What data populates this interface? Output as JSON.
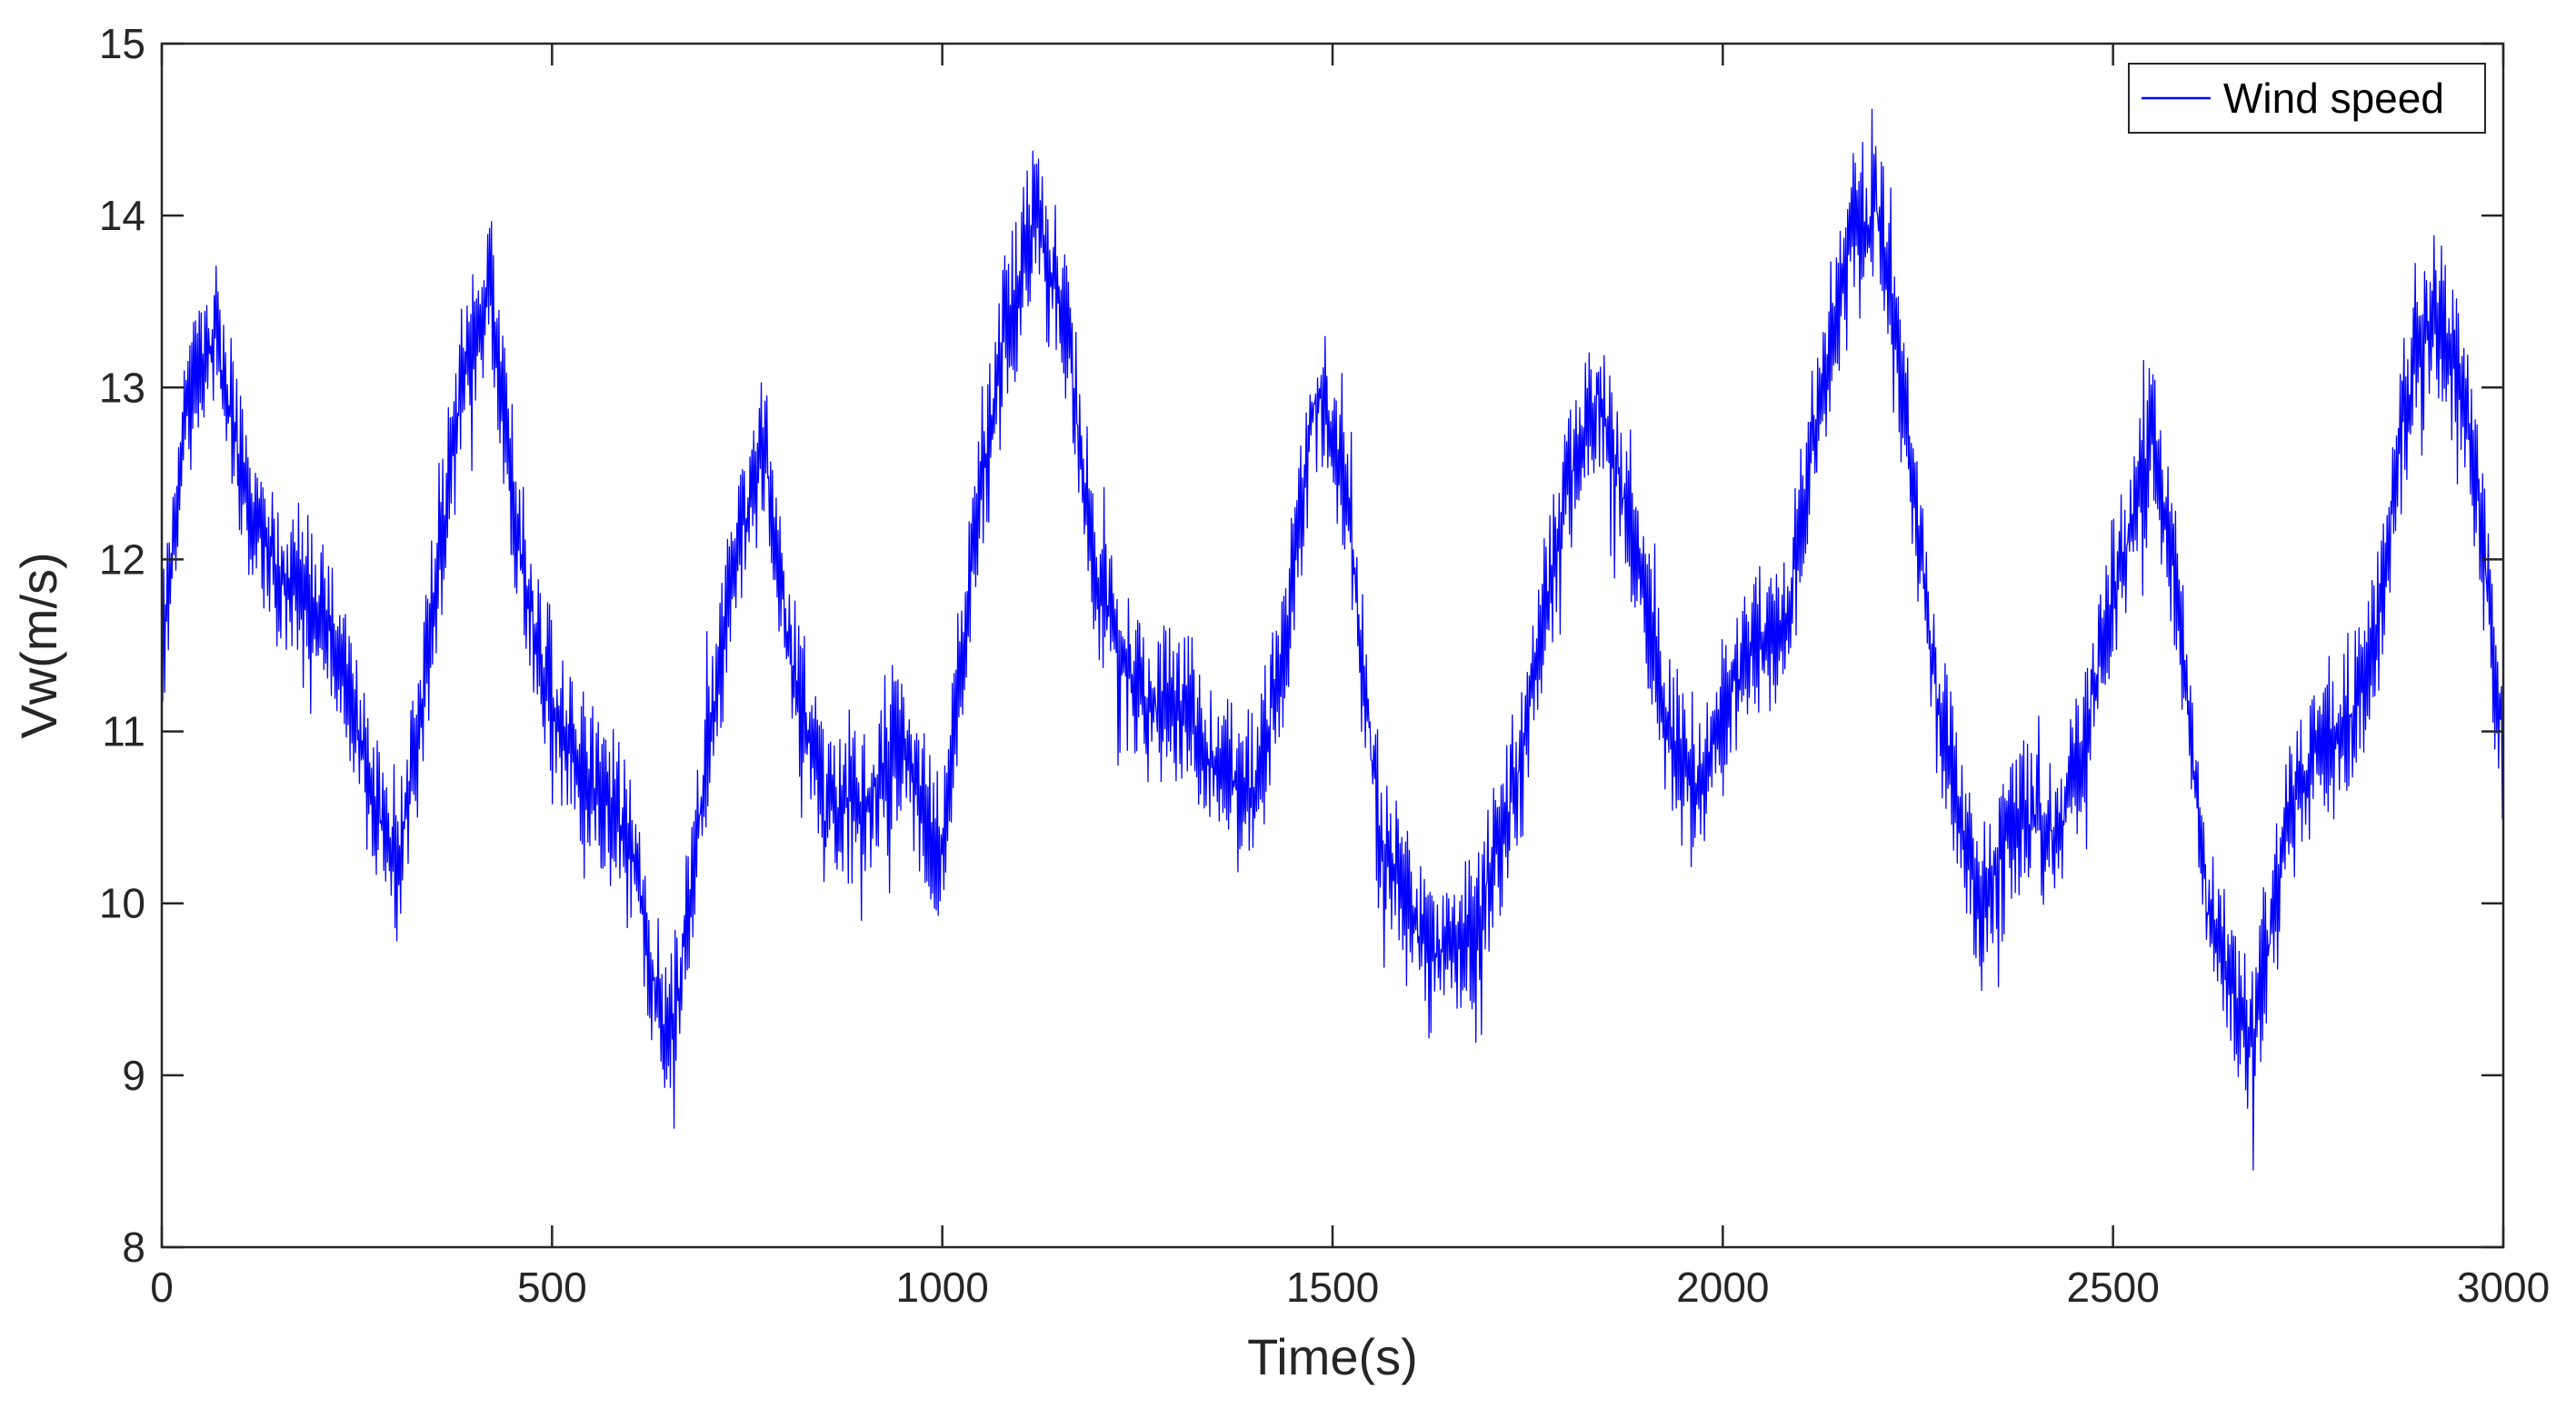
{
  "chart_data": {
    "type": "line",
    "title": "",
    "xlabel": "Time(s)",
    "ylabel": "Vw(m/s)",
    "xlim": [
      0,
      3000
    ],
    "ylim": [
      8,
      15
    ],
    "xticks": [
      0,
      500,
      1000,
      1500,
      2000,
      2500,
      3000
    ],
    "xtick_labels": [
      "0",
      "500",
      "1000",
      "1500",
      "2000",
      "2500",
      "3000"
    ],
    "yticks": [
      8,
      9,
      10,
      11,
      12,
      13,
      14,
      15
    ],
    "ytick_labels": [
      "8",
      "9",
      "10",
      "11",
      "12",
      "13",
      "14",
      "15"
    ],
    "grid": false,
    "legend": {
      "position": "top-right",
      "entries": [
        "Wind speed"
      ]
    },
    "series": [
      {
        "name": "Wind speed",
        "color": "#0000ff",
        "noise_amplitude": 0.45,
        "envelope": {
          "x": [
            0,
            30,
            70,
            110,
            150,
            190,
            230,
            270,
            300,
            330,
            380,
            420,
            460,
            500,
            540,
            600,
            650,
            700,
            740,
            770,
            800,
            850,
            900,
            950,
            1000,
            1040,
            1080,
            1120,
            1160,
            1200,
            1260,
            1300,
            1350,
            1400,
            1440,
            1480,
            1520,
            1560,
            1620,
            1680,
            1740,
            1800,
            1840,
            1880,
            1920,
            1960,
            2000,
            2040,
            2080,
            2120,
            2160,
            2200,
            2240,
            2280,
            2330,
            2380,
            2430,
            2470,
            2510,
            2550,
            2580,
            2620,
            2680,
            2720,
            2760,
            2800,
            2840,
            2870,
            2910,
            2950,
            2980,
            3000
          ],
          "y": [
            11.4,
            12.9,
            13.3,
            12.3,
            11.9,
            11.8,
            11.5,
            10.6,
            10.2,
            11.0,
            12.9,
            13.6,
            12.0,
            11.1,
            10.8,
            10.4,
            9.1,
            10.9,
            12.1,
            12.7,
            11.6,
            10.5,
            10.6,
            10.9,
            10.3,
            12.1,
            13.3,
            14.0,
            13.3,
            11.8,
            11.1,
            11.2,
            10.8,
            10.6,
            11.6,
            13.0,
            12.3,
            10.4,
            9.7,
            9.8,
            10.8,
            12.4,
            13.0,
            12.2,
            11.2,
            10.6,
            11.1,
            11.5,
            11.6,
            12.8,
            13.9,
            14.0,
            12.6,
            11.0,
            10.0,
            10.5,
            10.4,
            11.1,
            12.0,
            12.7,
            11.9,
            10.0,
            9.1,
            10.4,
            10.9,
            11.0,
            11.7,
            12.8,
            13.5,
            13.0,
            11.8,
            10.9
          ]
        }
      }
    ]
  }
}
